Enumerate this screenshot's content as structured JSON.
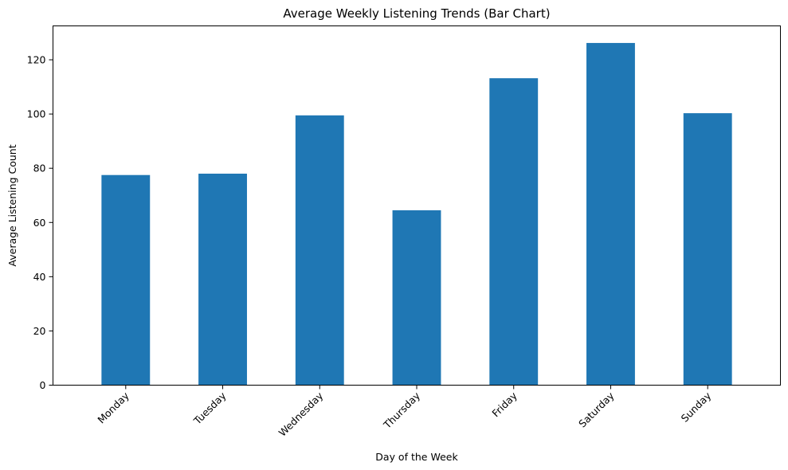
{
  "chart_data": {
    "type": "bar",
    "title": "Average Weekly Listening Trends (Bar Chart)",
    "xlabel": "Day of the Week",
    "ylabel": "Average Listening Count",
    "categories": [
      "Monday",
      "Tuesday",
      "Wednesday",
      "Thursday",
      "Friday",
      "Saturday",
      "Sunday"
    ],
    "values": [
      77.5,
      78.0,
      99.5,
      64.5,
      113.2,
      126.2,
      100.3
    ],
    "ylim": [
      0,
      132.5
    ],
    "yticks": [
      "0",
      "20",
      "40",
      "60",
      "80",
      "100",
      "120"
    ],
    "bar_color": "#1f77b4",
    "grid": false,
    "legend": "none"
  }
}
